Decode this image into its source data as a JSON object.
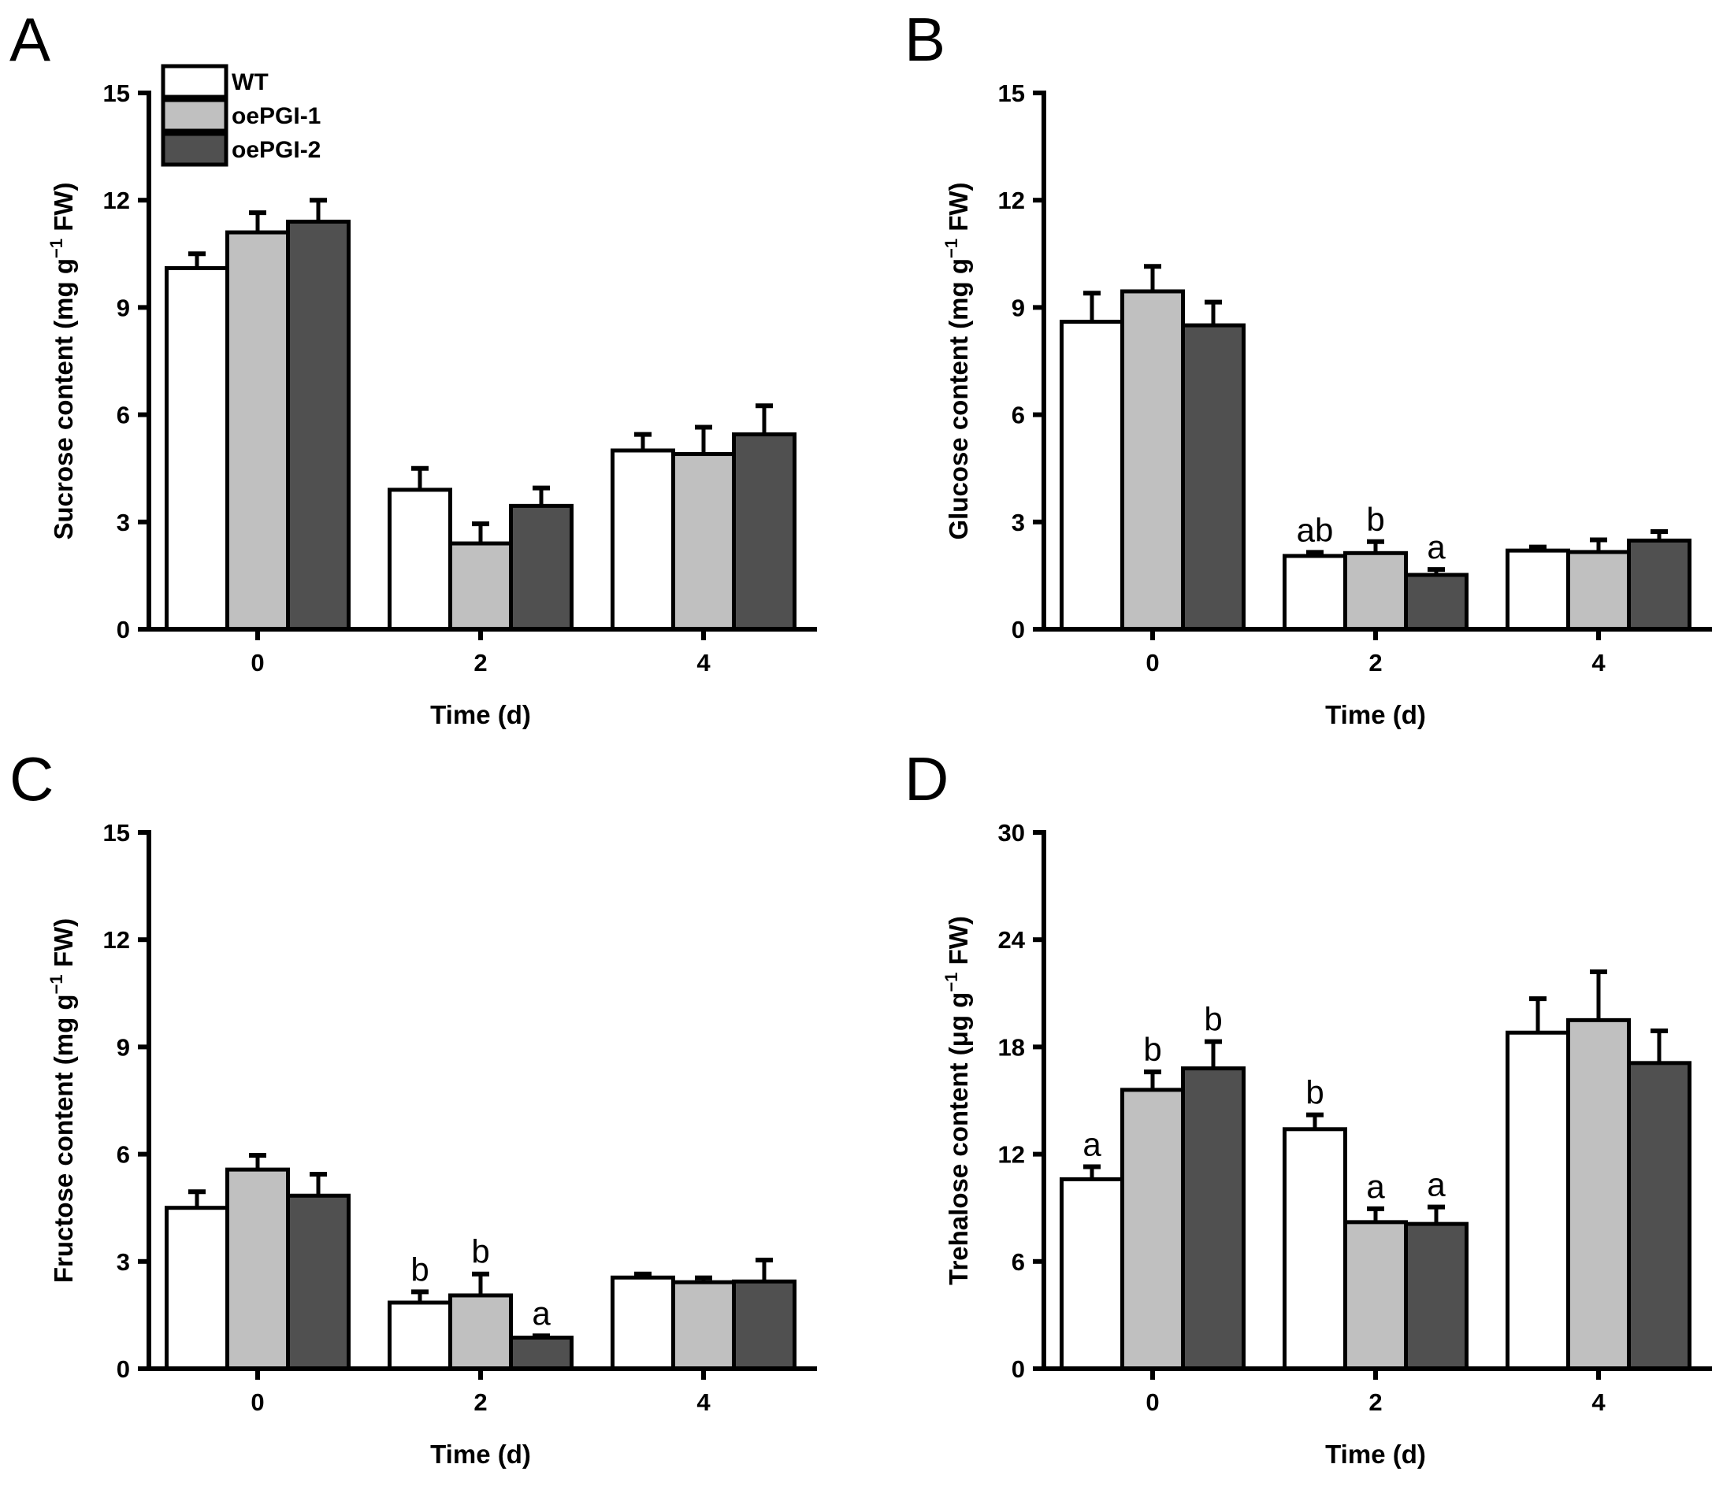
{
  "legend": [
    {
      "label": "WT",
      "color": "#ffffff"
    },
    {
      "label": "oePGI-1",
      "color": "#c0c0c0"
    },
    {
      "label": "oePGI-2",
      "color": "#505050"
    }
  ],
  "chart_data": [
    {
      "type": "bar",
      "panel": "A",
      "title": "",
      "xlabel": "Time (d)",
      "ylabel": {
        "prefix": "Sucrose content (mg g",
        "sup": "−1",
        "suffix": " FW)"
      },
      "categories": [
        "0",
        "2",
        "4"
      ],
      "ylim": [
        0,
        15
      ],
      "yticks": [
        "0",
        "3",
        "6",
        "9",
        "12",
        "15"
      ],
      "legend_position": "top-left",
      "series": [
        {
          "name": "WT",
          "values": [
            10.1,
            3.9,
            5.0
          ],
          "errors": [
            0.4,
            0.6,
            0.45
          ],
          "letters": [
            "",
            "",
            ""
          ]
        },
        {
          "name": "oePGI-1",
          "values": [
            11.1,
            2.4,
            4.9
          ],
          "errors": [
            0.55,
            0.55,
            0.75
          ],
          "letters": [
            "",
            "",
            ""
          ]
        },
        {
          "name": "oePGI-2",
          "values": [
            11.4,
            3.45,
            5.45
          ],
          "errors": [
            0.6,
            0.5,
            0.8
          ],
          "letters": [
            "",
            "",
            ""
          ]
        }
      ]
    },
    {
      "type": "bar",
      "panel": "B",
      "title": "",
      "xlabel": "Time (d)",
      "ylabel": {
        "prefix": "Glucose content (mg g",
        "sup": "−1",
        "suffix": " FW)"
      },
      "categories": [
        "0",
        "2",
        "4"
      ],
      "ylim": [
        0,
        15
      ],
      "yticks": [
        "0",
        "3",
        "6",
        "9",
        "12",
        "15"
      ],
      "series": [
        {
          "name": "WT",
          "values": [
            8.6,
            2.05,
            2.2
          ],
          "errors": [
            0.8,
            0.1,
            0.1
          ],
          "letters": [
            "",
            "ab",
            ""
          ]
        },
        {
          "name": "oePGI-1",
          "values": [
            9.45,
            2.13,
            2.16
          ],
          "errors": [
            0.7,
            0.32,
            0.34
          ],
          "letters": [
            "",
            "b",
            ""
          ]
        },
        {
          "name": "oePGI-2",
          "values": [
            8.5,
            1.52,
            2.48
          ],
          "errors": [
            0.65,
            0.15,
            0.25
          ],
          "letters": [
            "",
            "a",
            ""
          ]
        }
      ]
    },
    {
      "type": "bar",
      "panel": "C",
      "title": "",
      "xlabel": "Time (d)",
      "ylabel": {
        "prefix": "Fructose content (mg g",
        "sup": "−1",
        "suffix": " FW)"
      },
      "categories": [
        "0",
        "2",
        "4"
      ],
      "ylim": [
        0,
        15
      ],
      "yticks": [
        "0",
        "3",
        "6",
        "9",
        "12",
        "15"
      ],
      "series": [
        {
          "name": "WT",
          "values": [
            4.5,
            1.85,
            2.55
          ],
          "errors": [
            0.45,
            0.3,
            0.1
          ],
          "letters": [
            "",
            "b",
            ""
          ]
        },
        {
          "name": "oePGI-1",
          "values": [
            5.57,
            2.05,
            2.42
          ],
          "errors": [
            0.4,
            0.6,
            0.12
          ],
          "letters": [
            "",
            "b",
            ""
          ]
        },
        {
          "name": "oePGI-2",
          "values": [
            4.84,
            0.87,
            2.44
          ],
          "errors": [
            0.6,
            0.05,
            0.6
          ],
          "letters": [
            "",
            "a",
            ""
          ]
        }
      ]
    },
    {
      "type": "bar",
      "panel": "D",
      "title": "",
      "xlabel": "Time (d)",
      "ylabel": {
        "prefix": "Trehalose content (μg g",
        "sup": "−1",
        "suffix": " FW)"
      },
      "categories": [
        "0",
        "2",
        "4"
      ],
      "ylim": [
        0,
        30
      ],
      "yticks": [
        "0",
        "6",
        "12",
        "18",
        "24",
        "30"
      ],
      "series": [
        {
          "name": "WT",
          "values": [
            10.6,
            13.4,
            18.8
          ],
          "errors": [
            0.7,
            0.8,
            1.9
          ],
          "letters": [
            "a",
            "b",
            ""
          ]
        },
        {
          "name": "oePGI-1",
          "values": [
            15.6,
            8.2,
            19.5
          ],
          "errors": [
            1.0,
            0.75,
            2.7
          ],
          "letters": [
            "b",
            "a",
            ""
          ]
        },
        {
          "name": "oePGI-2",
          "values": [
            16.8,
            8.1,
            17.1
          ],
          "errors": [
            1.5,
            0.95,
            1.8
          ],
          "letters": [
            "b",
            "a",
            ""
          ]
        }
      ]
    }
  ]
}
